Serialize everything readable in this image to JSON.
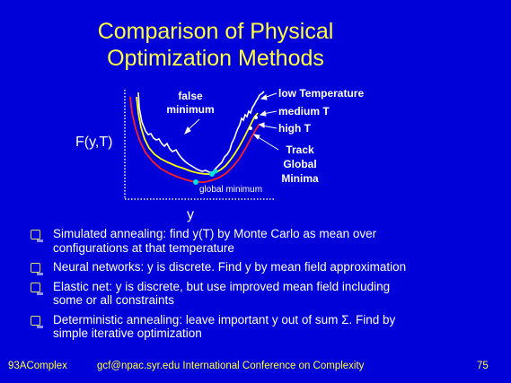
{
  "slide": {
    "title_line1": "Comparison of Physical",
    "title_line2": "Optimization Methods"
  },
  "figure": {
    "y_label": "F(y,T)",
    "x_label": "y",
    "annotations": {
      "false_minimum_1": "false",
      "false_minimum_2": "minimum",
      "low_temp": "low Temperature",
      "medium_t": "medium T",
      "high_t": "high T",
      "track_1": "Track",
      "track_2": "Global",
      "track_3": "Minima",
      "global_minimum": "global minimum"
    },
    "colors": {
      "low_temperature": "#ffffff",
      "medium_t": "#ffff00",
      "high_t": "#ff2020",
      "global_minimum_dot": "#00e0e0"
    }
  },
  "bullets": [
    {
      "line1": "Simulated annealing: find y(T) by Monte Carlo as mean over",
      "line2": "configurations at that temperature"
    },
    {
      "line1": "Neural networks: y is discrete.  Find y by mean field approximation",
      "line2": ""
    },
    {
      "line1": "Elastic net: y is discrete, but use improved mean field including",
      "line2": "some or all constraints"
    },
    {
      "line1": "Deterministic annealing: leave important y out of sum Σ.  Find by",
      "line2": "simple iterative optimization"
    }
  ],
  "footer": {
    "left": "93AComplex",
    "center": "gcf@npac.syr.edu International Conference on Complexity",
    "page": "75"
  }
}
